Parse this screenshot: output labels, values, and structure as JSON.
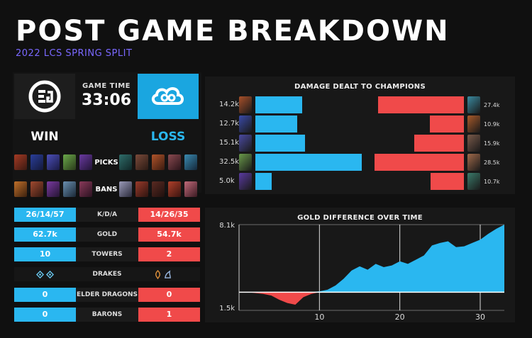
{
  "header": {
    "title": "POST GAME BREAKDOWN",
    "subtitle": "2022 LCS SPRING SPLIT"
  },
  "match": {
    "game_time_label": "GAME TIME",
    "game_time": "33:06",
    "left_result": "WIN",
    "right_result": "LOSS",
    "left_logo_icon": "evil-geniuses-logo",
    "right_logo_icon": "cloud9-logo",
    "picks_label": "PICKS",
    "bans_label": "BANS"
  },
  "stats": [
    {
      "label": "K/D/A",
      "left": "26/14/57",
      "right": "14/26/35"
    },
    {
      "label": "GOLD",
      "left": "62.7k",
      "right": "54.7k"
    },
    {
      "label": "TOWERS",
      "left": "10",
      "right": "2"
    },
    {
      "label": "DRAKES",
      "left": "",
      "right": "",
      "left_icons": [
        "cloud-drake-icon",
        "cloud-drake-icon"
      ],
      "right_icons": [
        "infernal-drake-icon",
        "ocean-drake-icon"
      ]
    },
    {
      "label": "ELDER DRAGONS",
      "left": "0",
      "right": "0"
    },
    {
      "label": "BARONS",
      "left": "0",
      "right": "1"
    }
  ],
  "colors": {
    "left_team": "#2ab7f0",
    "right_team": "#f04a4a",
    "accent": "#7a68ff"
  },
  "chart_data": [
    {
      "type": "bar",
      "title": "DAMAGE DEALT TO CHAMPIONS",
      "series": [
        {
          "values": [
            14.2,
            12.7,
            15.1,
            32.5,
            5.0
          ],
          "labels": [
            "14.2k",
            "12.7k",
            "15.1k",
            "32.5k",
            "5.0k"
          ]
        },
        {
          "values": [
            27.4,
            10.9,
            15.9,
            28.5,
            10.7
          ],
          "labels": [
            "27.4k",
            "10.9k",
            "15.9k",
            "28.5k",
            "10.7k"
          ]
        }
      ]
    },
    {
      "type": "area",
      "title": "GOLD DIFFERENCE OVER TIME",
      "ylim": [
        -1.5,
        8.1
      ],
      "y_ticks": [
        "8.1k",
        "1.5k"
      ],
      "xlim": [
        0,
        33
      ],
      "x_ticks": [
        10,
        20,
        30
      ],
      "x": [
        0,
        1,
        2,
        3,
        4,
        5,
        6,
        7,
        8,
        9,
        10,
        11,
        12,
        13,
        14,
        15,
        16,
        17,
        18,
        19,
        20,
        21,
        22,
        23,
        24,
        25,
        26,
        27,
        28,
        29,
        30,
        31,
        32,
        33
      ],
      "y": [
        0,
        0,
        -0.1,
        -0.2,
        -0.4,
        -0.9,
        -1.3,
        -1.5,
        -0.6,
        -0.2,
        0.1,
        0.3,
        0.8,
        1.6,
        2.6,
        3.1,
        2.7,
        3.4,
        3.0,
        3.2,
        3.7,
        3.4,
        3.9,
        4.4,
        5.6,
        5.9,
        6.1,
        5.4,
        5.5,
        5.9,
        6.3,
        7.0,
        7.6,
        8.1
      ]
    }
  ]
}
